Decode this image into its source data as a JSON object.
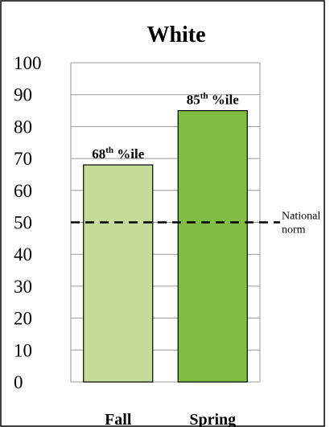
{
  "chart_data": {
    "type": "bar",
    "title": "White",
    "categories": [
      "Fall",
      "Spring"
    ],
    "values": [
      68,
      85
    ],
    "value_labels": [
      {
        "number": "68",
        "suffix": "th",
        "unit": "%ile"
      },
      {
        "number": "85",
        "suffix": "th",
        "unit": "%ile"
      }
    ],
    "bar_colors": [
      "#c3dc99",
      "#7fbd43"
    ],
    "ylim": [
      0,
      100
    ],
    "yticks": [
      "0",
      "10",
      "20",
      "30",
      "40",
      "50",
      "60",
      "70",
      "80",
      "90",
      "100"
    ],
    "grid": true,
    "reference_line": {
      "value": 50,
      "label_lines": [
        "National",
        "norm"
      ],
      "style": "dashed",
      "color": "#000000"
    },
    "xlabel": "",
    "ylabel": ""
  }
}
